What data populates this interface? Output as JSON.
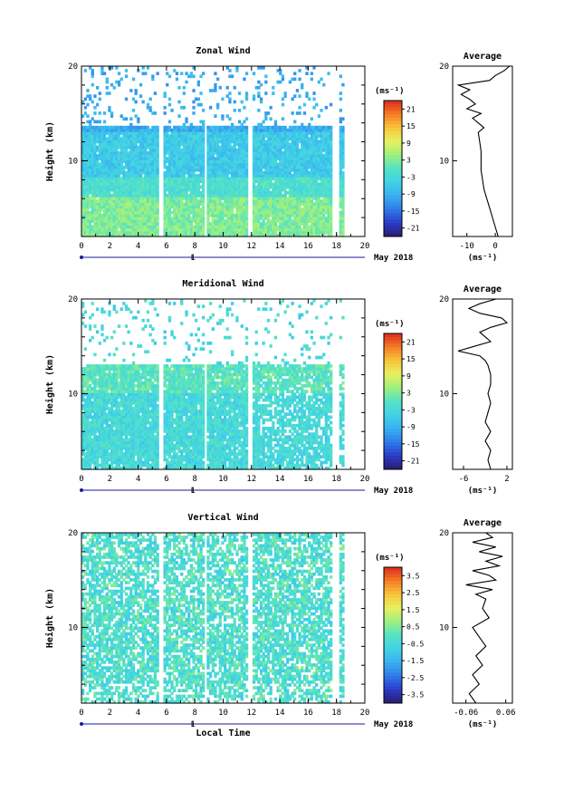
{
  "figure": {
    "xlabel": "Local Time",
    "date_label": "May 2018",
    "day_marker": "1"
  },
  "chart_data": [
    {
      "type": "heatmap",
      "title": "Zonal Wind",
      "ylabel": "Height (km)",
      "x_range": [
        0,
        20
      ],
      "y_range": [
        2,
        20
      ],
      "x_ticks": [
        0,
        2,
        4,
        6,
        8,
        10,
        12,
        14,
        16,
        18,
        20
      ],
      "y_ticks": [
        10,
        20
      ],
      "unit": "(ms⁻¹)",
      "colorbar_ticks": [
        "21",
        "15",
        "9",
        "3",
        "-3",
        "-9",
        "-15",
        "-21"
      ],
      "colorbar_range": [
        -24,
        24
      ],
      "data_gaps_hours": [
        [
          5.5,
          5.7
        ],
        [
          8.6,
          8.8
        ],
        [
          11.7,
          12.0
        ],
        [
          17.6,
          18.2
        ],
        [
          18.6,
          20
        ]
      ],
      "profile": {
        "title": "Average",
        "x_ticks": [
          "-10",
          "0"
        ],
        "x_range": [
          -15,
          6
        ],
        "y_ticks": [
          10,
          20
        ],
        "xlabel": "(ms⁻¹)",
        "heights": [
          2,
          3,
          4,
          5,
          6,
          7,
          8,
          9,
          10,
          11,
          12,
          13,
          13.5,
          14,
          14.5,
          15,
          15.5,
          16,
          16.5,
          17,
          17.5,
          18,
          18.5,
          19,
          19.5,
          20
        ],
        "values": [
          1,
          0,
          -1,
          -2,
          -3,
          -4,
          -4.5,
          -5,
          -5,
          -5,
          -5.5,
          -6,
          -4,
          -6,
          -8,
          -5,
          -10,
          -7,
          -9,
          -12,
          -9,
          -13,
          -2,
          0,
          3,
          5
        ]
      }
    },
    {
      "type": "heatmap",
      "title": "Meridional Wind",
      "ylabel": "Height (km)",
      "x_range": [
        0,
        20
      ],
      "y_range": [
        2,
        20
      ],
      "x_ticks": [
        0,
        2,
        4,
        6,
        8,
        10,
        12,
        14,
        16,
        18,
        20
      ],
      "y_ticks": [
        10,
        20
      ],
      "unit": "(ms⁻¹)",
      "colorbar_ticks": [
        "21",
        "15",
        "9",
        "3",
        "-3",
        "-9",
        "-15",
        "-21"
      ],
      "colorbar_range": [
        -24,
        24
      ],
      "data_gaps_hours": [
        [
          5.5,
          5.7
        ],
        [
          8.6,
          8.8
        ],
        [
          11.7,
          12.0
        ],
        [
          17.6,
          18.2
        ],
        [
          18.6,
          20
        ]
      ],
      "profile": {
        "title": "Average",
        "x_ticks": [
          "-6",
          "2"
        ],
        "x_range": [
          -8,
          3
        ],
        "y_ticks": [
          10,
          20
        ],
        "xlabel": "(ms⁻¹)",
        "heights": [
          2,
          3,
          4,
          5,
          6,
          7,
          8,
          9,
          10,
          11,
          12,
          13,
          13.5,
          14,
          14.5,
          15,
          15.5,
          16,
          16.5,
          17,
          17.5,
          18,
          18.5,
          19,
          19.5,
          20
        ],
        "values": [
          -1,
          -1.5,
          -1,
          -2,
          -1,
          -2,
          -1.5,
          -1,
          -1.5,
          -1,
          -1,
          -1.5,
          -2,
          -3,
          -7,
          -4,
          -1,
          -2,
          -3,
          -1,
          2,
          1,
          -3,
          -5,
          -3,
          0
        ]
      }
    },
    {
      "type": "heatmap",
      "title": "Vertical Wind",
      "ylabel": "Height (km)",
      "x_range": [
        0,
        20
      ],
      "y_range": [
        2,
        20
      ],
      "x_ticks": [
        0,
        2,
        4,
        6,
        8,
        10,
        12,
        14,
        16,
        18,
        20
      ],
      "y_ticks": [
        10,
        20
      ],
      "unit": "(ms⁻¹)",
      "colorbar_ticks": [
        "3.5",
        "2.5",
        "1.5",
        "0.5",
        "-0.5",
        "-1.5",
        "-2.5",
        "-3.5"
      ],
      "colorbar_range": [
        -4,
        4
      ],
      "data_gaps_hours": [
        [
          5.5,
          5.7
        ],
        [
          8.6,
          8.8
        ],
        [
          11.7,
          12.0
        ],
        [
          17.6,
          18.2
        ],
        [
          18.6,
          20
        ]
      ],
      "profile": {
        "title": "Average",
        "x_ticks": [
          "-0.06",
          "0.06"
        ],
        "x_range": [
          -0.1,
          0.08
        ],
        "y_ticks": [
          10,
          20
        ],
        "xlabel": "(ms⁻¹)",
        "heights": [
          2,
          3,
          4,
          5,
          6,
          7,
          8,
          9,
          10,
          11,
          12,
          13,
          13.5,
          14,
          14.5,
          15,
          15.5,
          16,
          16.5,
          17,
          17.5,
          18,
          18.5,
          19,
          19.5,
          20
        ],
        "values": [
          -0.03,
          -0.05,
          -0.02,
          -0.04,
          -0.01,
          -0.03,
          0.0,
          -0.02,
          -0.04,
          0.01,
          -0.01,
          0.0,
          -0.03,
          0.02,
          -0.06,
          0.03,
          0.01,
          -0.04,
          0.04,
          0.0,
          0.05,
          -0.02,
          0.03,
          -0.04,
          0.02,
          0.0
        ]
      }
    }
  ]
}
